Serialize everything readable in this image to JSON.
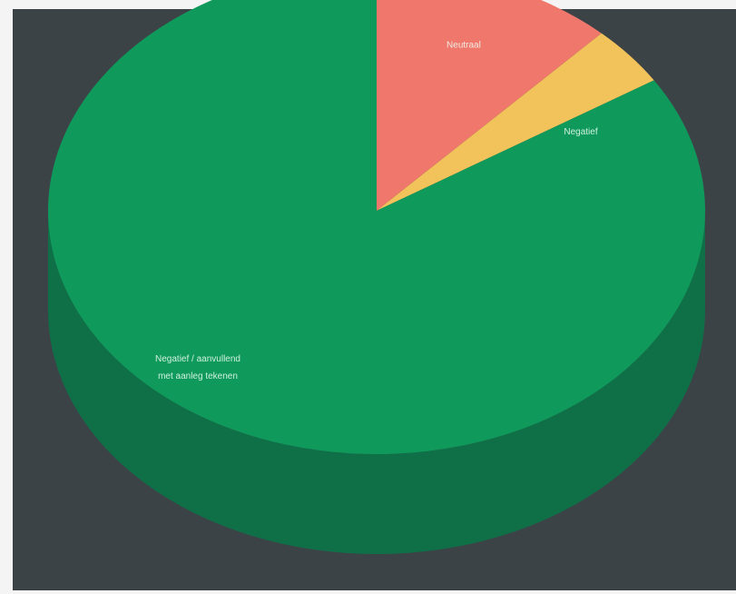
{
  "chart_data": {
    "type": "pie",
    "style": "3d",
    "title": "",
    "slices": [
      {
        "label": "Neutraal",
        "value": 12,
        "color": "#f0776b"
      },
      {
        "label": "Negatief",
        "value": 4,
        "color": "#f2c35a"
      },
      {
        "label": "Negatief / aanvullend met aanleg tekenen",
        "value": 84,
        "color": "#0f9a5c"
      }
    ],
    "colors": {
      "background": "#3c4347",
      "side": "#0f7048"
    }
  }
}
